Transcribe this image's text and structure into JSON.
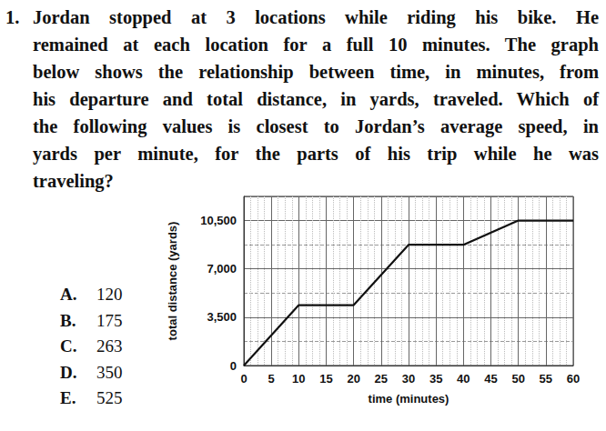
{
  "question": {
    "number": "1.",
    "lines": [
      "Jordan stopped at 3 locations while riding his bike. He",
      "remained at each location for a full 10 minutes. The graph",
      "below shows the relationship between time, in minutes, from",
      "his departure and total distance, in yards, traveled. Which of",
      "the following values is closest to Jordan’s average speed, in",
      "yards per minute, for the parts of his trip while he was",
      "traveling?"
    ]
  },
  "choices": [
    {
      "letter": "A.",
      "value": "120"
    },
    {
      "letter": "B.",
      "value": "175"
    },
    {
      "letter": "C.",
      "value": "263"
    },
    {
      "letter": "D.",
      "value": "350"
    },
    {
      "letter": "E.",
      "value": "525"
    }
  ],
  "chart_data": {
    "type": "line",
    "x_label": "time (minutes)",
    "y_label": "total distance (yards)",
    "x": [
      0,
      10,
      20,
      30,
      40,
      50,
      60
    ],
    "values": [
      0,
      4375,
      4375,
      8750,
      8750,
      10500,
      10500
    ],
    "color": "#111111",
    "xlim": [
      0,
      60
    ],
    "xticks": [
      0,
      5,
      10,
      15,
      20,
      25,
      30,
      35,
      40,
      45,
      50,
      55,
      60
    ],
    "ylim": [
      0,
      12250
    ],
    "yticks": [
      0,
      {
        "value": 3500,
        "label": "3,500"
      },
      {
        "value": 7000,
        "label": "7,000"
      },
      {
        "value": 10500,
        "label": "10,500"
      }
    ],
    "grid": true
  }
}
